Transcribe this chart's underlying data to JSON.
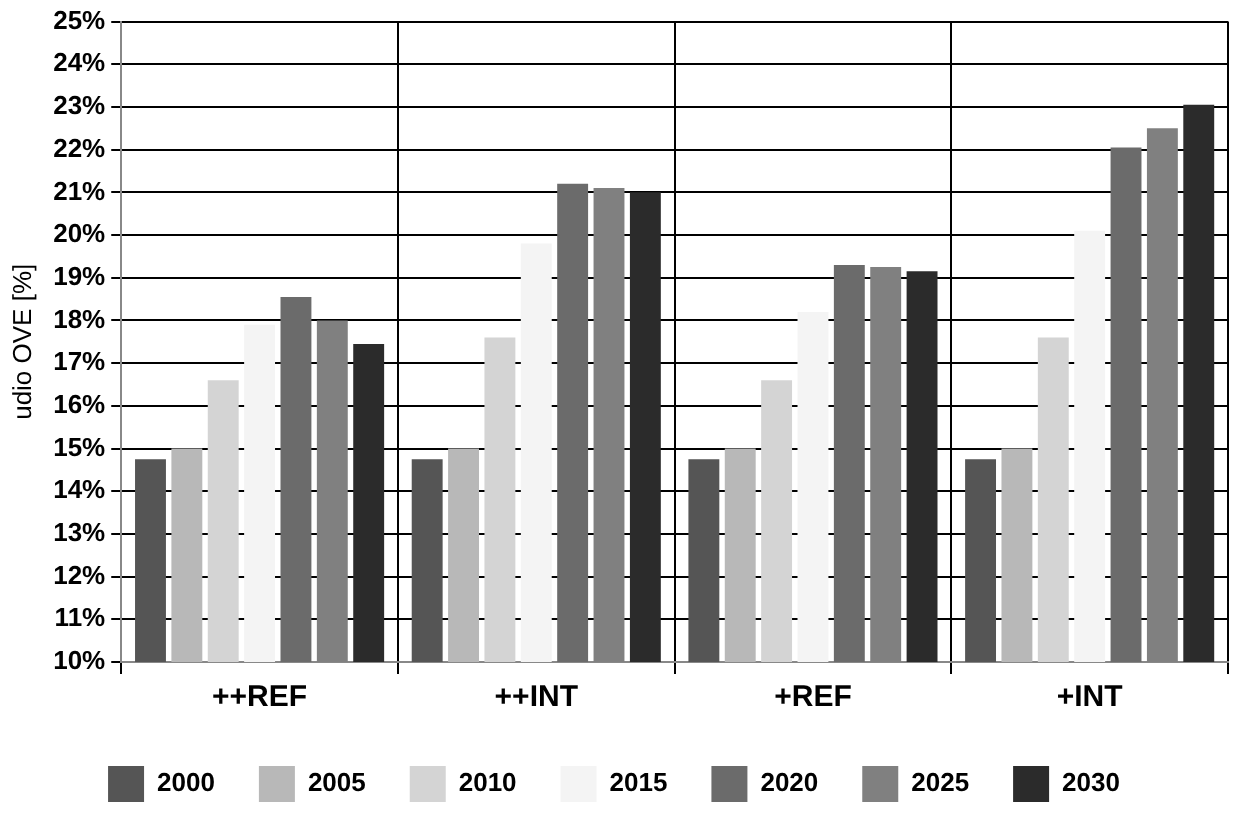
{
  "chart_data": {
    "type": "bar",
    "ylabel": "udio OVE [%]",
    "categories": [
      "++REF",
      "++INT",
      "+REF",
      "+INT"
    ],
    "series": [
      {
        "name": "2000",
        "color": "#555555",
        "values": [
          14.75,
          14.75,
          14.75,
          14.75
        ]
      },
      {
        "name": "2005",
        "color": "#b8b8b8",
        "values": [
          15.0,
          15.0,
          15.0,
          15.0
        ]
      },
      {
        "name": "2010",
        "color": "#d4d4d4",
        "values": [
          16.6,
          17.6,
          16.6,
          17.6
        ]
      },
      {
        "name": "2015",
        "color": "#f4f4f4",
        "values": [
          17.9,
          19.8,
          18.2,
          20.1
        ]
      },
      {
        "name": "2020",
        "color": "#6b6b6b",
        "values": [
          18.55,
          21.2,
          19.3,
          22.05
        ]
      },
      {
        "name": "2025",
        "color": "#808080",
        "values": [
          18.0,
          21.1,
          19.25,
          22.5
        ]
      },
      {
        "name": "2030",
        "color": "#2b2b2b",
        "values": [
          17.45,
          21.0,
          19.15,
          23.05
        ]
      }
    ],
    "ylim": [
      10,
      25
    ],
    "yticks": [
      {
        "value": 10,
        "label": "10%"
      },
      {
        "value": 11,
        "label": "11%"
      },
      {
        "value": 12,
        "label": "12%"
      },
      {
        "value": 13,
        "label": "13%"
      },
      {
        "value": 14,
        "label": "14%"
      },
      {
        "value": 15,
        "label": "15%"
      },
      {
        "value": 16,
        "label": "16%"
      },
      {
        "value": 17,
        "label": "17%"
      },
      {
        "value": 18,
        "label": "18%"
      },
      {
        "value": 19,
        "label": "19%"
      },
      {
        "value": 20,
        "label": "20%"
      },
      {
        "value": 21,
        "label": "21%"
      },
      {
        "value": 22,
        "label": "22%"
      },
      {
        "value": 23,
        "label": "23%"
      },
      {
        "value": 24,
        "label": "24%"
      },
      {
        "value": 25,
        "label": "25%"
      }
    ],
    "grid": true,
    "legend": "bottom"
  }
}
